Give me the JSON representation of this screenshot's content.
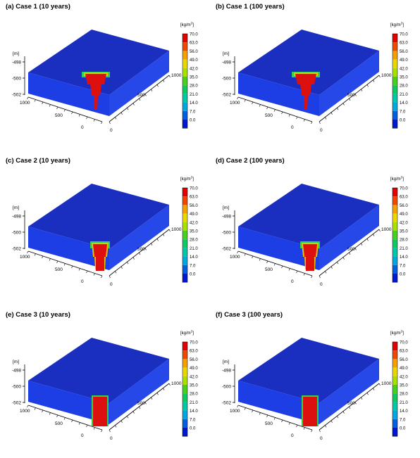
{
  "figure": {
    "panels": [
      {
        "title": "(a) Case 1 (10 years)",
        "case": 1
      },
      {
        "title": "(b) Case 1 (100 years)",
        "case": 1
      },
      {
        "title": "(c) Case 2 (10 years)",
        "case": 2
      },
      {
        "title": "(d) Case 2 (100 years)",
        "case": 2
      },
      {
        "title": "(e) Case 3 (10 years)",
        "case": 3
      },
      {
        "title": "(f) Case 3 (100 years)",
        "case": 3
      }
    ],
    "axes": {
      "z_unit": "[m]",
      "z_ticks": [
        "-498",
        "-500",
        "-502"
      ],
      "left_ticks": [
        "1000",
        "500",
        "0"
      ],
      "right_ticks": [
        "1000",
        "500",
        "0"
      ]
    },
    "colorbar": {
      "unit": "[kg/m",
      "unit_sup": "3",
      "unit_close": "]",
      "labels": [
        "70.0",
        "63.0",
        "56.0",
        "49.0",
        "42.0",
        "35.0",
        "28.0",
        "21.0",
        "14.0",
        "7.0",
        "0.0"
      ],
      "colors": [
        "#e30000",
        "#f04800",
        "#f5a000",
        "#e8d800",
        "#a8e000",
        "#48d020",
        "#10c860",
        "#00c8a8",
        "#00a8e0",
        "#0060e0",
        "#0018d0"
      ]
    },
    "box_colors": {
      "top": "#1a2ec0",
      "left_face": "#1c3ee4",
      "right_face": "#2648e8",
      "plume_core": "#dd1010",
      "plume_rim_green": "#30d050",
      "plume_rim_yellow": "#f0c000"
    }
  }
}
